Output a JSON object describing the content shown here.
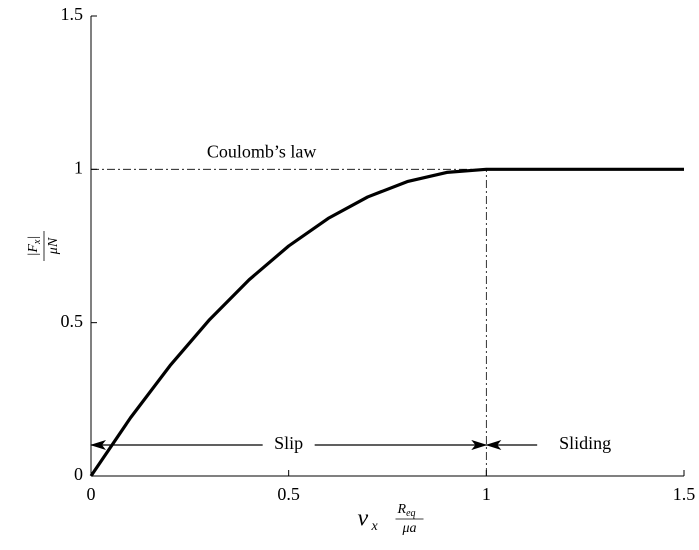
{
  "chart_data": {
    "type": "line",
    "x": [
      0,
      0.1,
      0.2,
      0.3,
      0.4,
      0.5,
      0.6,
      0.7,
      0.8,
      0.9,
      1,
      1.5
    ],
    "series": [
      {
        "color": "#000000",
        "values": [
          0,
          0.19,
          0.36,
          0.51,
          0.64,
          0.75,
          0.84,
          0.91,
          0.96,
          0.99,
          1,
          1
        ]
      }
    ],
    "xlim": [
      0,
      1.5
    ],
    "ylim": [
      0,
      1.5
    ],
    "xticks": [
      0,
      0.5,
      1,
      1.5
    ],
    "yticks": [
      0,
      0.5,
      1,
      1.5
    ],
    "x_label": {
      "symbol": "ν",
      "subscript": "x",
      "numerator": "R",
      "numerator_subscript": "eq",
      "denominator": "μa"
    },
    "y_label": {
      "numerator": "|F",
      "numerator_subscript": "x",
      "numerator_end": "|",
      "denominator": "μN"
    },
    "reference_lines": {
      "y": 1,
      "x": 1,
      "label": "Coulomb’s law"
    },
    "regions": [
      {
        "label": "Slip",
        "from": 0,
        "to": 1
      },
      {
        "label": "Sliding",
        "from": 1,
        "to": 1.5
      }
    ]
  }
}
